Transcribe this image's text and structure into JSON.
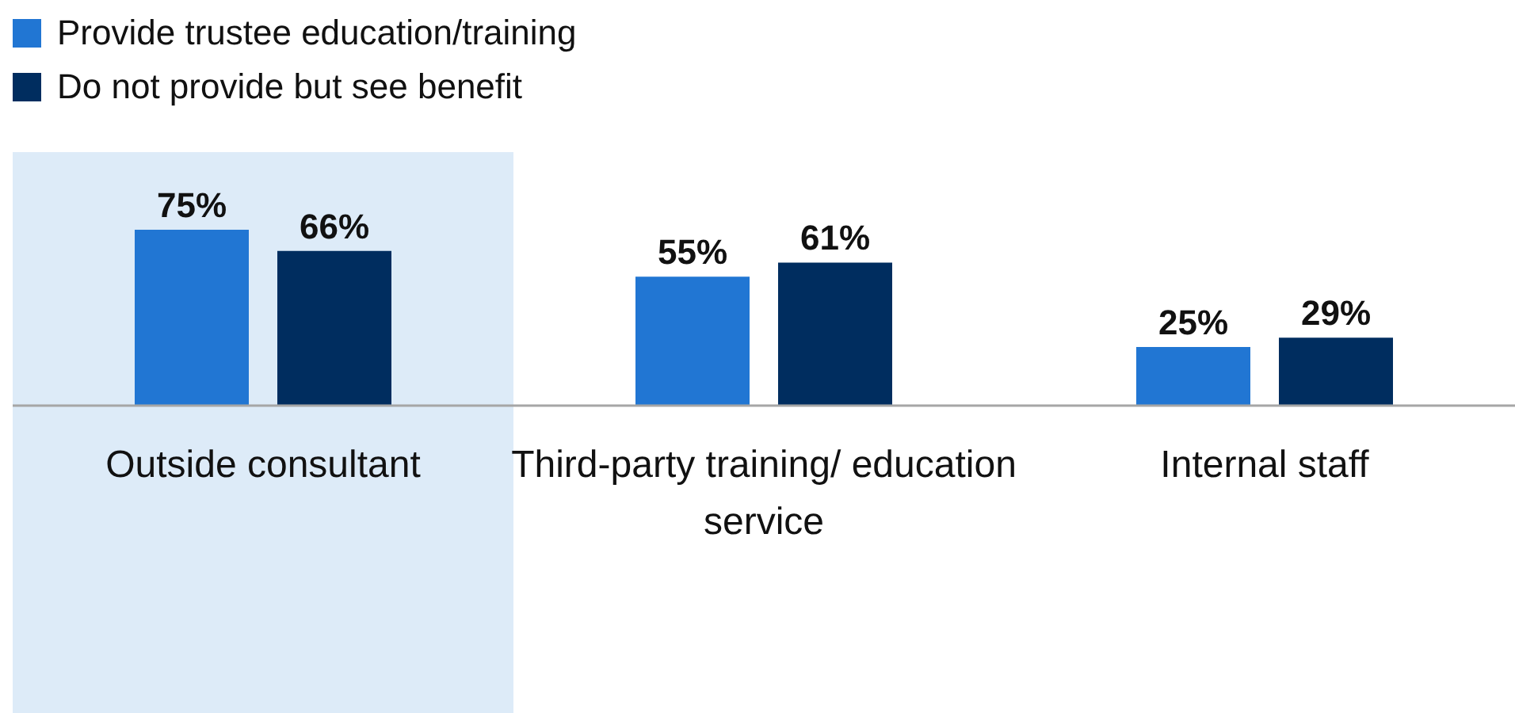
{
  "chart_data": {
    "type": "bar",
    "categories": [
      "Outside consultant",
      "Third-party training/ education service",
      "Internal staff"
    ],
    "series": [
      {
        "name": "Provide trustee education/training",
        "color": "#2176d3",
        "values": [
          75,
          55,
          25
        ],
        "value_labels": [
          "75%",
          "55%",
          "25%"
        ]
      },
      {
        "name": "Do not provide but see benefit",
        "color": "#002d5f",
        "values": [
          66,
          61,
          29
        ],
        "value_labels": [
          "66%",
          "61%",
          "29%"
        ]
      }
    ],
    "legend": "top left",
    "bands": [
      {
        "axis": "x",
        "from": "Outside consultant",
        "to": "Outside consultant",
        "color": "#ddebf8"
      }
    ]
  }
}
